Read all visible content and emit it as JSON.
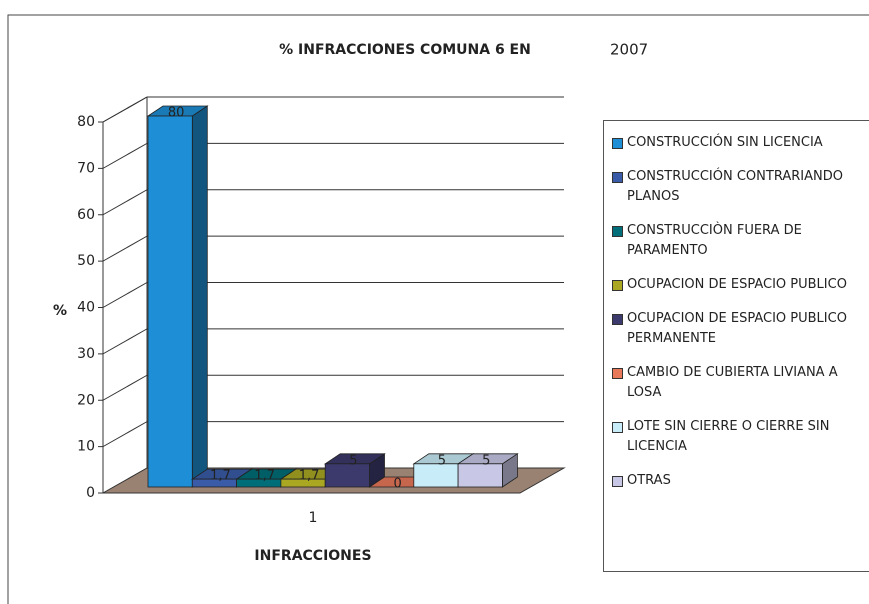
{
  "chart_data": {
    "type": "bar",
    "title": "% INFRACCIONES COMUNA 6 EN",
    "subtitle": "2007",
    "x_label": "INFRACCIONES",
    "y_label": "%",
    "categories": [
      "1"
    ],
    "series": [
      {
        "name": "CONSTRUCCIÓN SIN LICENCIA",
        "color": "#1e8fd6",
        "values": [
          80
        ],
        "value_labels": [
          "80"
        ]
      },
      {
        "name": "CONSTRUCCIÓN CONTRARIANDO PLANOS",
        "color": "#3a5ca8",
        "values": [
          1.7
        ],
        "value_labels": [
          "1,7"
        ]
      },
      {
        "name": "CONSTRUCCIÒN FUERA DE PARAMENTO",
        "color": "#006e78",
        "values": [
          1.7
        ],
        "value_labels": [
          "1,7"
        ]
      },
      {
        "name": "OCUPACION DE ESPACIO PUBLICO",
        "color": "#aaa822",
        "values": [
          1.7
        ],
        "value_labels": [
          "1,7"
        ]
      },
      {
        "name": "OCUPACION DE ESPACIO PUBLICO PERMANENTE",
        "color": "#3c3a6c",
        "values": [
          5
        ],
        "value_labels": [
          "5"
        ]
      },
      {
        "name": "CAMBIO DE CUBIERTA LIVIANA A LOSA",
        "color": "#e8785a",
        "values": [
          0
        ],
        "value_labels": [
          "0"
        ]
      },
      {
        "name": "LOTE SIN CIERRE O CIERRE SIN LICENCIA",
        "color": "#c8ecf8",
        "values": [
          5
        ],
        "value_labels": [
          "5"
        ]
      },
      {
        "name": "OTRAS",
        "color": "#c8c8e6",
        "values": [
          5
        ],
        "value_labels": [
          "5"
        ]
      }
    ],
    "ylim": [
      0,
      80
    ],
    "yticks": [
      0,
      10,
      20,
      30,
      40,
      50,
      60,
      70,
      80
    ],
    "grid": true,
    "legend": "right"
  }
}
